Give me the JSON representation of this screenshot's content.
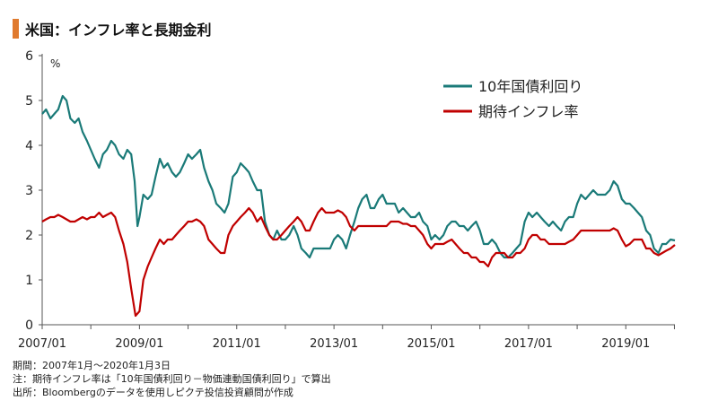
{
  "title": "米国：インフレ率と長期金利",
  "notes": [
    "期間：2007年1月～2020年1月3日",
    "注：期待インフレ率は「10年国債利回り－物価連動国債利回り」で算出",
    "出所：Bloombergのデータを使用しピクテ投信投資顧問が作成"
  ],
  "chart_data": {
    "type": "line",
    "title": "米国：インフレ率と長期金利",
    "ylabel": "%",
    "ylim": [
      0,
      6
    ],
    "yticks": [
      0,
      1,
      2,
      3,
      4,
      5,
      6
    ],
    "xlim": [
      2007.0,
      2020.01
    ],
    "xtick_labels": [
      {
        "value": 2007.0,
        "label": "2007/01"
      },
      {
        "value": 2009.0,
        "label": "2009/01"
      },
      {
        "value": 2011.0,
        "label": "2011/01"
      },
      {
        "value": 2013.0,
        "label": "2013/01"
      },
      {
        "value": 2015.0,
        "label": "2015/01"
      },
      {
        "value": 2017.0,
        "label": "2017/01"
      },
      {
        "value": 2019.0,
        "label": "2019/01"
      }
    ],
    "grid": false,
    "legend_position": "top-right",
    "series": [
      {
        "name": "10年国債利回り",
        "color": "#1a7a78",
        "x": [
          2007.0,
          2007.08,
          2007.17,
          2007.25,
          2007.33,
          2007.42,
          2007.5,
          2007.58,
          2007.67,
          2007.75,
          2007.83,
          2007.92,
          2008.0,
          2008.08,
          2008.17,
          2008.25,
          2008.33,
          2008.42,
          2008.5,
          2008.58,
          2008.67,
          2008.75,
          2008.83,
          2008.9,
          2008.96,
          2009.0,
          2009.08,
          2009.17,
          2009.25,
          2009.33,
          2009.42,
          2009.5,
          2009.58,
          2009.67,
          2009.75,
          2009.83,
          2009.92,
          2010.0,
          2010.08,
          2010.17,
          2010.25,
          2010.33,
          2010.42,
          2010.5,
          2010.58,
          2010.67,
          2010.75,
          2010.83,
          2010.92,
          2011.0,
          2011.08,
          2011.17,
          2011.25,
          2011.33,
          2011.42,
          2011.5,
          2011.58,
          2011.67,
          2011.75,
          2011.83,
          2011.92,
          2012.0,
          2012.08,
          2012.17,
          2012.25,
          2012.33,
          2012.42,
          2012.5,
          2012.58,
          2012.67,
          2012.75,
          2012.83,
          2012.92,
          2013.0,
          2013.08,
          2013.17,
          2013.25,
          2013.33,
          2013.42,
          2013.5,
          2013.58,
          2013.67,
          2013.75,
          2013.83,
          2013.92,
          2014.0,
          2014.08,
          2014.17,
          2014.25,
          2014.33,
          2014.42,
          2014.5,
          2014.58,
          2014.67,
          2014.75,
          2014.83,
          2014.92,
          2015.0,
          2015.08,
          2015.17,
          2015.25,
          2015.33,
          2015.42,
          2015.5,
          2015.58,
          2015.67,
          2015.75,
          2015.83,
          2015.92,
          2016.0,
          2016.08,
          2016.17,
          2016.25,
          2016.33,
          2016.42,
          2016.5,
          2016.58,
          2016.67,
          2016.75,
          2016.83,
          2016.92,
          2017.0,
          2017.08,
          2017.17,
          2017.25,
          2017.33,
          2017.42,
          2017.5,
          2017.58,
          2017.67,
          2017.75,
          2017.83,
          2017.92,
          2018.0,
          2018.08,
          2018.17,
          2018.25,
          2018.33,
          2018.42,
          2018.5,
          2018.58,
          2018.67,
          2018.75,
          2018.83,
          2018.92,
          2019.0,
          2019.08,
          2019.17,
          2019.25,
          2019.33,
          2019.42,
          2019.5,
          2019.58,
          2019.67,
          2019.75,
          2019.83,
          2019.92,
          2020.01
        ],
        "y": [
          4.7,
          4.8,
          4.6,
          4.7,
          4.8,
          5.1,
          5.0,
          4.6,
          4.5,
          4.6,
          4.3,
          4.1,
          3.9,
          3.7,
          3.5,
          3.8,
          3.9,
          4.1,
          4.0,
          3.8,
          3.7,
          3.9,
          3.8,
          3.2,
          2.2,
          2.4,
          2.9,
          2.8,
          2.9,
          3.3,
          3.7,
          3.5,
          3.6,
          3.4,
          3.3,
          3.4,
          3.6,
          3.8,
          3.7,
          3.8,
          3.9,
          3.5,
          3.2,
          3.0,
          2.7,
          2.6,
          2.5,
          2.7,
          3.3,
          3.4,
          3.6,
          3.5,
          3.4,
          3.2,
          3.0,
          3.0,
          2.3,
          2.0,
          1.9,
          2.1,
          1.9,
          1.9,
          2.0,
          2.2,
          2.0,
          1.7,
          1.6,
          1.5,
          1.7,
          1.7,
          1.7,
          1.7,
          1.7,
          1.9,
          2.0,
          1.9,
          1.7,
          2.0,
          2.3,
          2.6,
          2.8,
          2.9,
          2.6,
          2.6,
          2.8,
          2.9,
          2.7,
          2.7,
          2.7,
          2.5,
          2.6,
          2.5,
          2.4,
          2.4,
          2.5,
          2.3,
          2.2,
          1.9,
          2.0,
          1.9,
          2.0,
          2.2,
          2.3,
          2.3,
          2.2,
          2.2,
          2.1,
          2.2,
          2.3,
          2.1,
          1.8,
          1.8,
          1.9,
          1.8,
          1.6,
          1.5,
          1.5,
          1.6,
          1.7,
          1.8,
          2.3,
          2.5,
          2.4,
          2.5,
          2.4,
          2.3,
          2.2,
          2.3,
          2.2,
          2.1,
          2.3,
          2.4,
          2.4,
          2.7,
          2.9,
          2.8,
          2.9,
          3.0,
          2.9,
          2.9,
          2.9,
          3.0,
          3.2,
          3.1,
          2.8,
          2.7,
          2.7,
          2.6,
          2.5,
          2.4,
          2.1,
          2.0,
          1.7,
          1.6,
          1.8,
          1.8,
          1.9,
          1.88
        ]
      },
      {
        "name": "期待インフレ率",
        "color": "#c00000",
        "x": [
          2007.0,
          2007.08,
          2007.17,
          2007.25,
          2007.33,
          2007.42,
          2007.5,
          2007.58,
          2007.67,
          2007.75,
          2007.83,
          2007.92,
          2008.0,
          2008.08,
          2008.17,
          2008.25,
          2008.33,
          2008.42,
          2008.5,
          2008.58,
          2008.67,
          2008.75,
          2008.83,
          2008.92,
          2009.0,
          2009.08,
          2009.17,
          2009.25,
          2009.33,
          2009.42,
          2009.5,
          2009.58,
          2009.67,
          2009.75,
          2009.83,
          2009.92,
          2010.0,
          2010.08,
          2010.17,
          2010.25,
          2010.33,
          2010.42,
          2010.5,
          2010.58,
          2010.67,
          2010.75,
          2010.83,
          2010.92,
          2011.0,
          2011.08,
          2011.17,
          2011.25,
          2011.33,
          2011.42,
          2011.5,
          2011.58,
          2011.67,
          2011.75,
          2011.83,
          2011.92,
          2012.0,
          2012.08,
          2012.17,
          2012.25,
          2012.33,
          2012.42,
          2012.5,
          2012.58,
          2012.67,
          2012.75,
          2012.83,
          2012.92,
          2013.0,
          2013.08,
          2013.17,
          2013.25,
          2013.33,
          2013.42,
          2013.5,
          2013.58,
          2013.67,
          2013.75,
          2013.83,
          2013.92,
          2014.0,
          2014.08,
          2014.17,
          2014.25,
          2014.33,
          2014.42,
          2014.5,
          2014.58,
          2014.67,
          2014.75,
          2014.83,
          2014.92,
          2015.0,
          2015.08,
          2015.17,
          2015.25,
          2015.33,
          2015.42,
          2015.5,
          2015.58,
          2015.67,
          2015.75,
          2015.83,
          2015.92,
          2016.0,
          2016.08,
          2016.17,
          2016.25,
          2016.33,
          2016.42,
          2016.5,
          2016.58,
          2016.67,
          2016.75,
          2016.83,
          2016.92,
          2017.0,
          2017.08,
          2017.17,
          2017.25,
          2017.33,
          2017.42,
          2017.5,
          2017.58,
          2017.67,
          2017.75,
          2017.83,
          2017.92,
          2018.0,
          2018.08,
          2018.17,
          2018.25,
          2018.33,
          2018.42,
          2018.5,
          2018.58,
          2018.67,
          2018.75,
          2018.83,
          2018.92,
          2019.0,
          2019.08,
          2019.17,
          2019.25,
          2019.33,
          2019.42,
          2019.5,
          2019.58,
          2019.67,
          2019.75,
          2019.83,
          2019.92,
          2020.01
        ],
        "y": [
          2.3,
          2.35,
          2.4,
          2.4,
          2.45,
          2.4,
          2.35,
          2.3,
          2.3,
          2.35,
          2.4,
          2.35,
          2.4,
          2.4,
          2.5,
          2.4,
          2.45,
          2.5,
          2.4,
          2.1,
          1.8,
          1.4,
          0.8,
          0.2,
          0.3,
          1.0,
          1.3,
          1.5,
          1.7,
          1.9,
          1.8,
          1.9,
          1.9,
          2.0,
          2.1,
          2.2,
          2.3,
          2.3,
          2.35,
          2.3,
          2.2,
          1.9,
          1.8,
          1.7,
          1.6,
          1.6,
          2.0,
          2.2,
          2.3,
          2.4,
          2.5,
          2.6,
          2.5,
          2.3,
          2.4,
          2.2,
          2.0,
          1.9,
          1.9,
          2.0,
          2.1,
          2.2,
          2.3,
          2.4,
          2.3,
          2.1,
          2.1,
          2.3,
          2.5,
          2.6,
          2.5,
          2.5,
          2.5,
          2.55,
          2.5,
          2.4,
          2.2,
          2.1,
          2.2,
          2.2,
          2.2,
          2.2,
          2.2,
          2.2,
          2.2,
          2.2,
          2.3,
          2.3,
          2.3,
          2.25,
          2.25,
          2.2,
          2.2,
          2.1,
          2.0,
          1.8,
          1.7,
          1.8,
          1.8,
          1.8,
          1.85,
          1.9,
          1.8,
          1.7,
          1.6,
          1.6,
          1.5,
          1.5,
          1.4,
          1.4,
          1.3,
          1.5,
          1.6,
          1.6,
          1.6,
          1.5,
          1.5,
          1.6,
          1.6,
          1.7,
          1.9,
          2.0,
          2.0,
          1.9,
          1.9,
          1.8,
          1.8,
          1.8,
          1.8,
          1.8,
          1.85,
          1.9,
          2.0,
          2.1,
          2.1,
          2.1,
          2.1,
          2.1,
          2.1,
          2.1,
          2.1,
          2.15,
          2.1,
          1.9,
          1.75,
          1.8,
          1.9,
          1.9,
          1.9,
          1.7,
          1.7,
          1.6,
          1.55,
          1.6,
          1.65,
          1.7,
          1.78
        ]
      }
    ]
  }
}
